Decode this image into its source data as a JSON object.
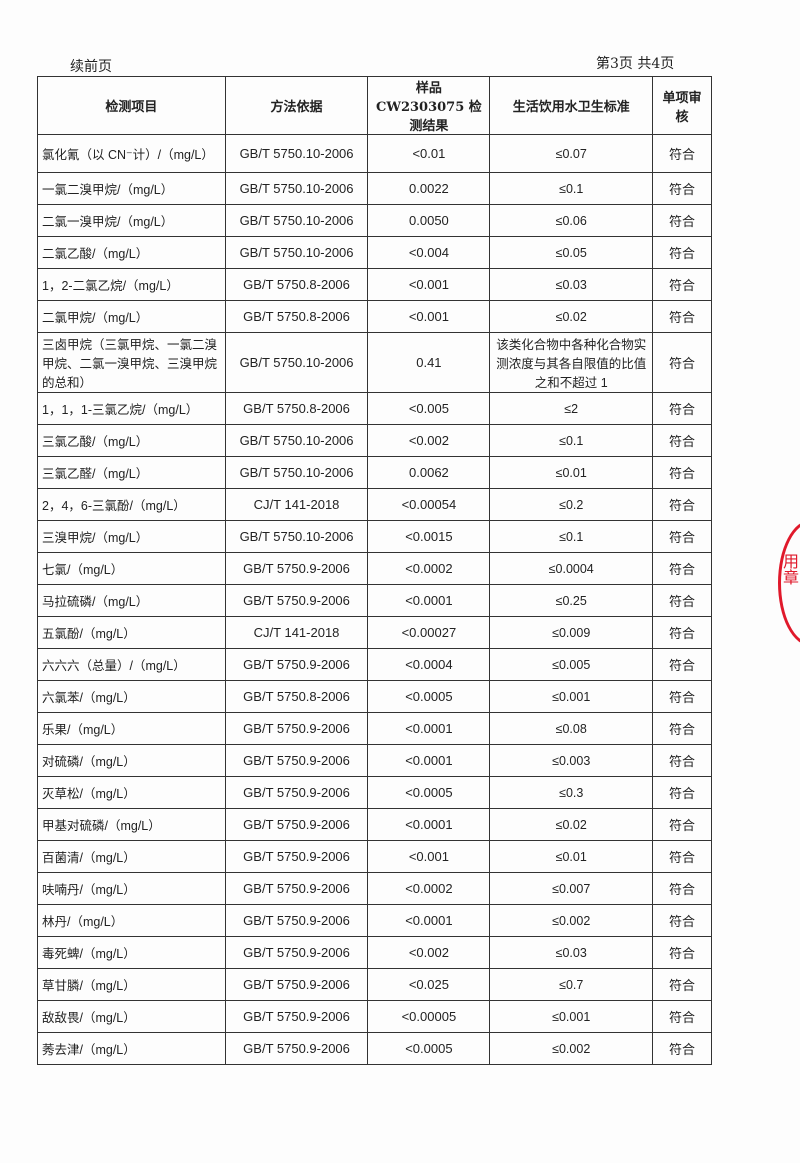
{
  "header": {
    "continued": "续前页",
    "page_number": "第3页 共4页"
  },
  "columns": [
    "检测项目",
    "方法依据",
    "样品 CW2303075 检测结果",
    "生活饮用水卫生标准",
    "单项审核"
  ],
  "rows": [
    {
      "item": "氯化氰（以 CN⁻计）/（mg/L）",
      "method": "GB/T 5750.10-2006",
      "result": "<0.01",
      "standard": "≤0.07",
      "review": "符合"
    },
    {
      "item": "一氯二溴甲烷/（mg/L）",
      "method": "GB/T 5750.10-2006",
      "result": "0.0022",
      "standard": "≤0.1",
      "review": "符合"
    },
    {
      "item": "二氯一溴甲烷/（mg/L）",
      "method": "GB/T 5750.10-2006",
      "result": "0.0050",
      "standard": "≤0.06",
      "review": "符合"
    },
    {
      "item": "二氯乙酸/（mg/L）",
      "method": "GB/T 5750.10-2006",
      "result": "<0.004",
      "standard": "≤0.05",
      "review": "符合"
    },
    {
      "item": "1，2-二氯乙烷/（mg/L）",
      "method": "GB/T 5750.8-2006",
      "result": "<0.001",
      "standard": "≤0.03",
      "review": "符合"
    },
    {
      "item": "二氯甲烷/（mg/L）",
      "method": "GB/T 5750.8-2006",
      "result": "<0.001",
      "standard": "≤0.02",
      "review": "符合"
    },
    {
      "item": "三卤甲烷（三氯甲烷、一氯二溴甲烷、二氯一溴甲烷、三溴甲烷的总和）",
      "method": "GB/T 5750.10-2006",
      "result": "0.41",
      "standard": "该类化合物中各种化合物实测浓度与其各自限值的比值之和不超过 1",
      "review": "符合"
    },
    {
      "item": "1，1，1-三氯乙烷/（mg/L）",
      "method": "GB/T 5750.8-2006",
      "result": "<0.005",
      "standard": "≤2",
      "review": "符合"
    },
    {
      "item": "三氯乙酸/（mg/L）",
      "method": "GB/T 5750.10-2006",
      "result": "<0.002",
      "standard": "≤0.1",
      "review": "符合"
    },
    {
      "item": "三氯乙醛/（mg/L）",
      "method": "GB/T 5750.10-2006",
      "result": "0.0062",
      "standard": "≤0.01",
      "review": "符合"
    },
    {
      "item": "2，4，6-三氯酚/（mg/L）",
      "method": "CJ/T 141-2018",
      "result": "<0.00054",
      "standard": "≤0.2",
      "review": "符合"
    },
    {
      "item": "三溴甲烷/（mg/L）",
      "method": "GB/T 5750.10-2006",
      "result": "<0.0015",
      "standard": "≤0.1",
      "review": "符合"
    },
    {
      "item": "七氯/（mg/L）",
      "method": "GB/T 5750.9-2006",
      "result": "<0.0002",
      "standard": "≤0.0004",
      "review": "符合"
    },
    {
      "item": "马拉硫磷/（mg/L）",
      "method": "GB/T 5750.9-2006",
      "result": "<0.0001",
      "standard": "≤0.25",
      "review": "符合"
    },
    {
      "item": "五氯酚/（mg/L）",
      "method": "CJ/T 141-2018",
      "result": "<0.00027",
      "standard": "≤0.009",
      "review": "符合"
    },
    {
      "item": "六六六（总量）/（mg/L）",
      "method": "GB/T 5750.9-2006",
      "result": "<0.0004",
      "standard": "≤0.005",
      "review": "符合"
    },
    {
      "item": "六氯苯/（mg/L）",
      "method": "GB/T 5750.8-2006",
      "result": "<0.0005",
      "standard": "≤0.001",
      "review": "符合"
    },
    {
      "item": "乐果/（mg/L）",
      "method": "GB/T 5750.9-2006",
      "result": "<0.0001",
      "standard": "≤0.08",
      "review": "符合"
    },
    {
      "item": "对硫磷/（mg/L）",
      "method": "GB/T 5750.9-2006",
      "result": "<0.0001",
      "standard": "≤0.003",
      "review": "符合"
    },
    {
      "item": "灭草松/（mg/L）",
      "method": "GB/T 5750.9-2006",
      "result": "<0.0005",
      "standard": "≤0.3",
      "review": "符合"
    },
    {
      "item": "甲基对硫磷/（mg/L）",
      "method": "GB/T 5750.9-2006",
      "result": "<0.0001",
      "standard": "≤0.02",
      "review": "符合"
    },
    {
      "item": "百菌清/（mg/L）",
      "method": "GB/T 5750.9-2006",
      "result": "<0.001",
      "standard": "≤0.01",
      "review": "符合"
    },
    {
      "item": "呋喃丹/（mg/L）",
      "method": "GB/T 5750.9-2006",
      "result": "<0.0002",
      "standard": "≤0.007",
      "review": "符合"
    },
    {
      "item": "林丹/（mg/L）",
      "method": "GB/T 5750.9-2006",
      "result": "<0.0001",
      "standard": "≤0.002",
      "review": "符合"
    },
    {
      "item": "毒死蜱/（mg/L）",
      "method": "GB/T 5750.9-2006",
      "result": "<0.002",
      "standard": "≤0.03",
      "review": "符合"
    },
    {
      "item": "草甘膦/（mg/L）",
      "method": "GB/T 5750.9-2006",
      "result": "<0.025",
      "standard": "≤0.7",
      "review": "符合"
    },
    {
      "item": "敌敌畏/（mg/L）",
      "method": "GB/T 5750.9-2006",
      "result": "<0.00005",
      "standard": "≤0.001",
      "review": "符合"
    },
    {
      "item": "莠去津/（mg/L）",
      "method": "GB/T 5750.9-2006",
      "result": "<0.0005",
      "standard": "≤0.002",
      "review": "符合"
    }
  ],
  "stamp": {
    "text": "检测有限公司专用章",
    "color": "#e0192b"
  }
}
